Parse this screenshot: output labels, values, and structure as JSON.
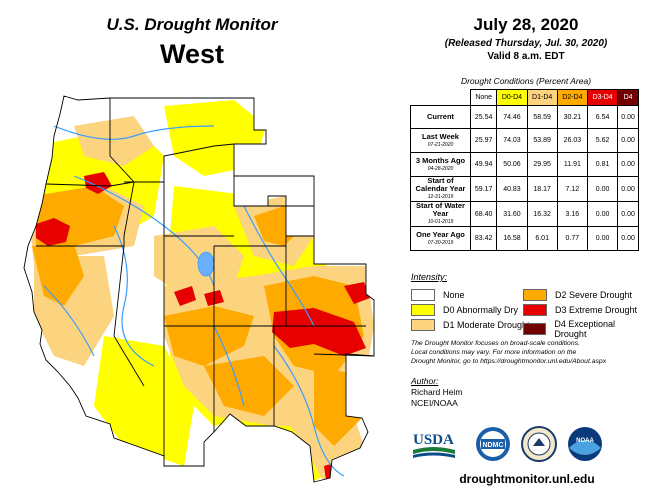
{
  "header": {
    "title": "U.S. Drought Monitor",
    "region": "West",
    "date": "July 28, 2020",
    "released": "(Released Thursday, Jul. 30, 2020)",
    "valid": "Valid 8 a.m. EDT"
  },
  "table": {
    "caption": "Drought Conditions (Percent Area)",
    "columns": [
      "None",
      "D0-D4",
      "D1-D4",
      "D2-D4",
      "D3-D4",
      "D4"
    ],
    "column_colors": [
      "#ffffff",
      "#ffff00",
      "#fcd37f",
      "#ffaa00",
      "#e60000",
      "#730000"
    ],
    "rows": [
      {
        "label": "Current",
        "date": "",
        "values": [
          "25.54",
          "74.46",
          "58.59",
          "30.21",
          "6.54",
          "0.00"
        ]
      },
      {
        "label": "Last Week",
        "date": "07-21-2020",
        "values": [
          "25.97",
          "74.03",
          "53.89",
          "26.03",
          "5.62",
          "0.00"
        ]
      },
      {
        "label": "3 Months Ago",
        "date": "04-28-2020",
        "values": [
          "49.94",
          "50.06",
          "29.95",
          "11.91",
          "0.81",
          "0.00"
        ]
      },
      {
        "label": "Start of Calendar Year",
        "date": "12-31-2019",
        "values": [
          "59.17",
          "40.83",
          "18.17",
          "7.12",
          "0.00",
          "0.00"
        ]
      },
      {
        "label": "Start of Water Year",
        "date": "10-01-2019",
        "values": [
          "68.40",
          "31.60",
          "16.32",
          "3.16",
          "0.00",
          "0.00"
        ]
      },
      {
        "label": "One Year Ago",
        "date": "07-30-2019",
        "values": [
          "83.42",
          "16.58",
          "6.01",
          "0.77",
          "0.00",
          "0.00"
        ]
      }
    ]
  },
  "legend": {
    "title": "Intensity:",
    "items": [
      {
        "label": "None",
        "color": "#ffffff"
      },
      {
        "label": "D0 Abnormally Dry",
        "color": "#ffff00"
      },
      {
        "label": "D1 Moderate Drought",
        "color": "#fcd37f"
      },
      {
        "label": "D2 Severe Drought",
        "color": "#ffaa00"
      },
      {
        "label": "D3 Extreme Drought",
        "color": "#e60000"
      },
      {
        "label": "D4 Exceptional Drought",
        "color": "#730000"
      }
    ]
  },
  "note": {
    "line1": "The Drought Monitor focuses on broad-scale conditions.",
    "line2": "Local conditions may vary. For more information on the",
    "line3": "Drought Monitor, go to https://droughtmonitor.unl.edu/About.aspx"
  },
  "author": {
    "heading": "Author:",
    "name": "Richard Heim",
    "org": "NCEI/NOAA"
  },
  "logos": {
    "usda": "USDA",
    "ndmc": "NDMC",
    "noaa": "NOAA"
  },
  "footer": {
    "url": "droughtmonitor.unl.edu"
  }
}
